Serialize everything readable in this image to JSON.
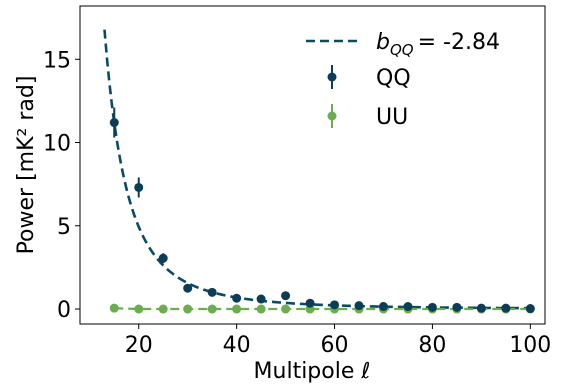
{
  "chart_data": {
    "type": "scatter",
    "xlabel": "Multipole ℓ",
    "ylabel": "Power [mK² rad]",
    "xlim": [
      8,
      103
    ],
    "ylim": [
      -0.9,
      18.2
    ],
    "xticks": [
      20,
      40,
      60,
      80,
      100
    ],
    "yticks": [
      0,
      5,
      10,
      15
    ],
    "grid": false,
    "legend_position": "top-right",
    "fit": {
      "label_symbol": "b",
      "label_subscript": "QQ",
      "label_value": "= -2.84",
      "exponent": -2.84,
      "x_range": [
        13,
        100
      ],
      "amplifier": 24460,
      "color": "#0b4a63",
      "style": "dashed"
    },
    "series": [
      {
        "name": "QQ",
        "color": "#0b3d56",
        "x": [
          15,
          20,
          25,
          30,
          35,
          40,
          45,
          50,
          55,
          60,
          65,
          70,
          75,
          80,
          85,
          90,
          95,
          100
        ],
        "y": [
          11.2,
          7.3,
          3.05,
          1.25,
          1.0,
          0.65,
          0.6,
          0.8,
          0.35,
          0.25,
          0.2,
          0.15,
          0.15,
          0.1,
          0.1,
          0.05,
          0.05,
          0.03
        ],
        "yerr": [
          0.9,
          0.6,
          0.3,
          0.1,
          0.1,
          0.1,
          0.1,
          0.1,
          0.06,
          0.05,
          0.04,
          0.04,
          0.04,
          0.03,
          0.03,
          0.03,
          0.03,
          0.03
        ]
      },
      {
        "name": "UU",
        "color": "#6aae4f",
        "x": [
          15,
          20,
          25,
          30,
          35,
          40,
          45,
          50,
          55,
          60,
          65,
          70,
          75,
          80,
          85,
          90,
          95,
          100
        ],
        "y": [
          0.05,
          0.0,
          0.0,
          0.0,
          0.0,
          0.0,
          0.0,
          0.0,
          0.0,
          0.0,
          0.0,
          0.0,
          0.0,
          0.0,
          0.0,
          0.0,
          0.0,
          0.0
        ],
        "yerr": [
          0.1,
          0.05,
          0.05,
          0.05,
          0.04,
          0.04,
          0.04,
          0.04,
          0.03,
          0.03,
          0.03,
          0.03,
          0.03,
          0.03,
          0.03,
          0.03,
          0.03,
          0.03
        ]
      }
    ]
  }
}
